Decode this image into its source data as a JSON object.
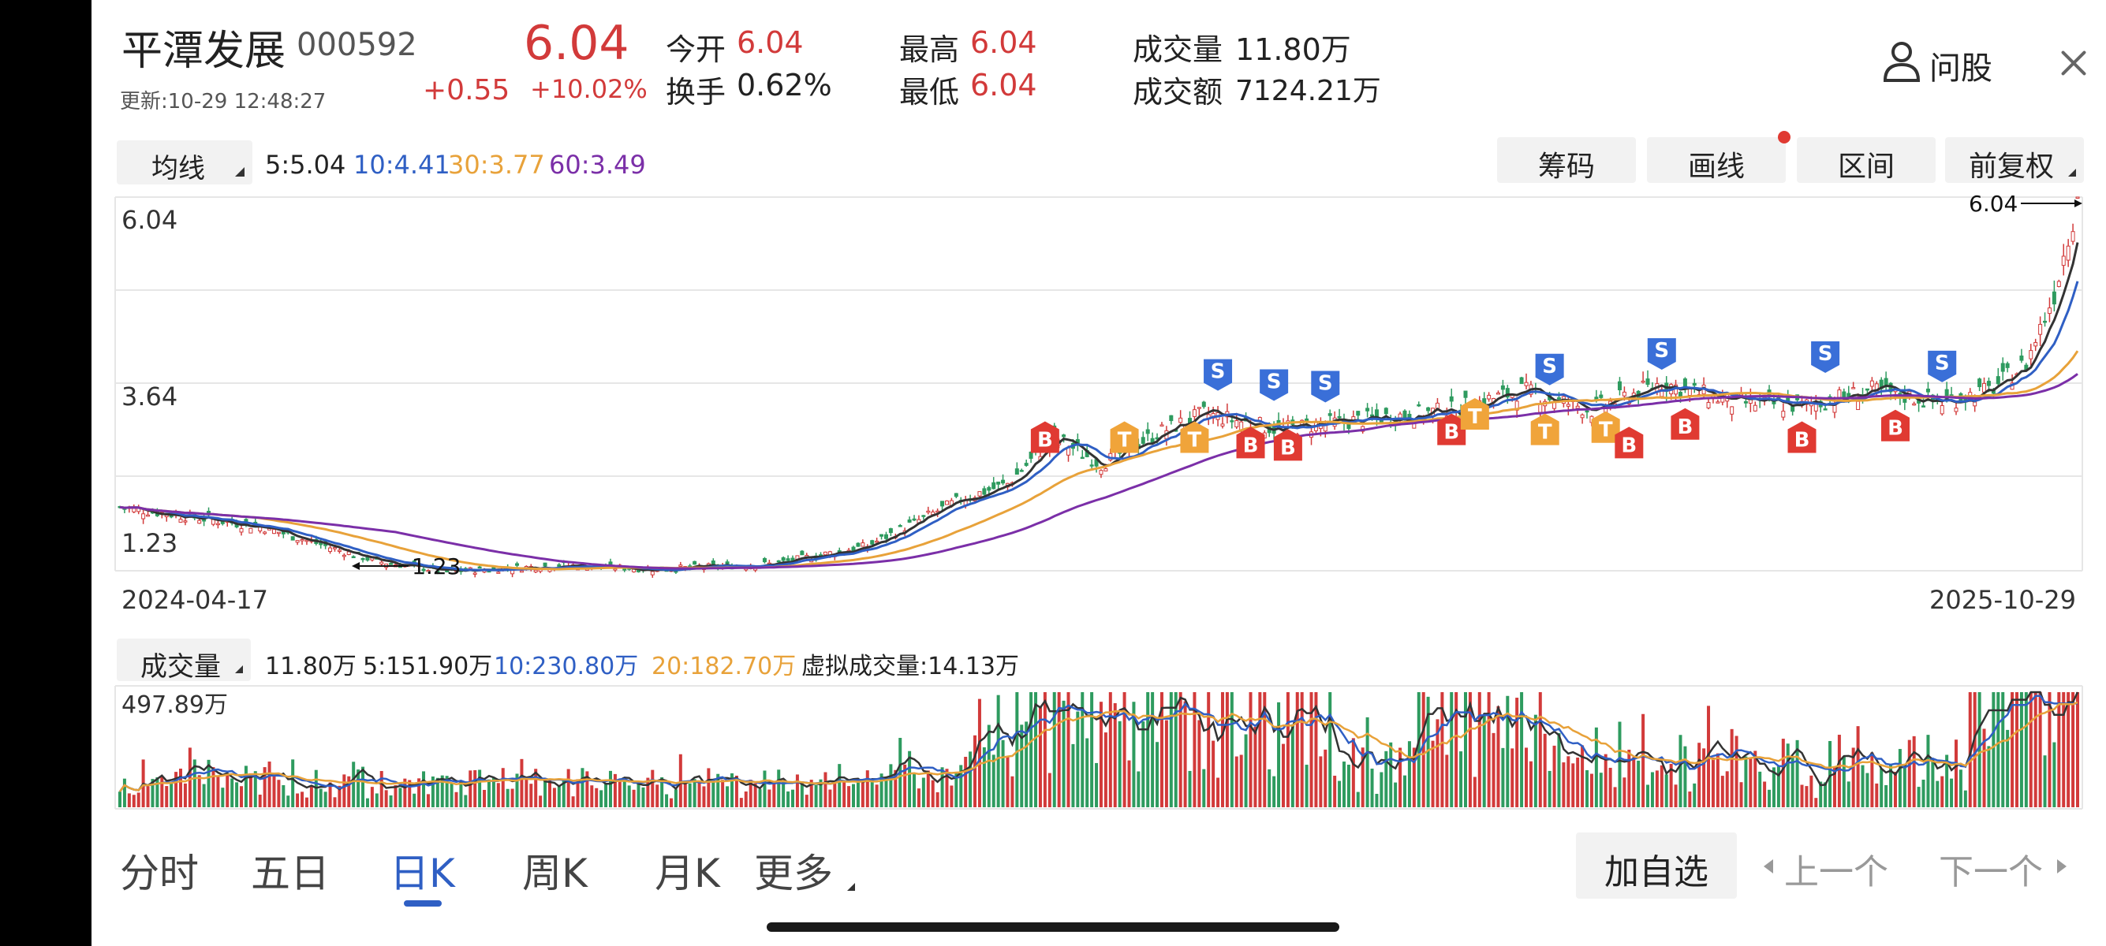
{
  "stock": {
    "name": "平潭发展",
    "code": "000592",
    "update": "更新:10-29 12:48:27",
    "price": "6.04",
    "change": "+0.55",
    "change_pct": "+10.02%"
  },
  "stats": {
    "open_label": "今开",
    "open": "6.04",
    "turnover_label": "换手",
    "turnover": "0.62%",
    "high_label": "最高",
    "high": "6.04",
    "low_label": "最低",
    "low": "6.04",
    "volume_label": "成交量",
    "volume": "11.80万",
    "amount_label": "成交额",
    "amount": "7124.21万"
  },
  "actions": {
    "ask_label": "问股"
  },
  "ma": {
    "selector": "均线",
    "ma5": "5:5.04",
    "ma10": "10:4.41",
    "ma30": "30:3.77",
    "ma60": "60:3.49"
  },
  "tools": {
    "chips": "筹码",
    "draw": "画线",
    "range": "区间",
    "adjust": "前复权"
  },
  "kline": {
    "y_top": "6.04",
    "y_mid": "3.64",
    "y_bottom": "1.23",
    "date_start": "2024-04-17",
    "date_end": "2025-10-29",
    "max_label": "6.04",
    "min_label": "1.23"
  },
  "vol": {
    "selector": "成交量",
    "current": "11.80万",
    "ma5": "5:151.90万",
    "ma10": "10:230.80万",
    "ma20": "20:182.70万",
    "virtual": "虚拟成交量:14.13万",
    "y_max": "497.89万"
  },
  "tabs": {
    "intraday": "分时",
    "five_day": "五日",
    "daily": "日K",
    "weekly": "周K",
    "monthly": "月K",
    "more": "更多"
  },
  "bottom": {
    "add_watch": "加自选",
    "prev": "上一个",
    "next": "下一个"
  },
  "markers": [
    {
      "t": "S",
      "c": "#3a6fd8",
      "d": 235,
      "p": 3.75
    },
    {
      "t": "S",
      "c": "#3a6fd8",
      "d": 247,
      "p": 3.62
    },
    {
      "t": "S",
      "c": "#3a6fd8",
      "d": 258,
      "p": 3.6
    },
    {
      "t": "S",
      "c": "#3a6fd8",
      "d": 306,
      "p": 3.82
    },
    {
      "t": "S",
      "c": "#3a6fd8",
      "d": 330,
      "p": 4.02
    },
    {
      "t": "S",
      "c": "#3a6fd8",
      "d": 365,
      "p": 3.98
    },
    {
      "t": "S",
      "c": "#3a6fd8",
      "d": 390,
      "p": 3.86
    },
    {
      "t": "B",
      "c": "#e03a32",
      "d": 198,
      "p": 2.95
    },
    {
      "t": "T",
      "c": "#f0a43a",
      "d": 215,
      "p": 2.95
    },
    {
      "t": "T",
      "c": "#f0a43a",
      "d": 230,
      "p": 2.95
    },
    {
      "t": "B",
      "c": "#e03a32",
      "d": 242,
      "p": 2.88
    },
    {
      "t": "B",
      "c": "#e03a32",
      "d": 250,
      "p": 2.85
    },
    {
      "t": "B",
      "c": "#e03a32",
      "d": 285,
      "p": 3.05
    },
    {
      "t": "T",
      "c": "#f0a43a",
      "d": 290,
      "p": 3.25
    },
    {
      "t": "T",
      "c": "#f0a43a",
      "d": 305,
      "p": 3.05
    },
    {
      "t": "T",
      "c": "#f0a43a",
      "d": 318,
      "p": 3.08
    },
    {
      "t": "B",
      "c": "#e03a32",
      "d": 323,
      "p": 2.88
    },
    {
      "t": "B",
      "c": "#e03a32",
      "d": 335,
      "p": 3.12
    },
    {
      "t": "B",
      "c": "#e03a32",
      "d": 360,
      "p": 2.95
    },
    {
      "t": "B",
      "c": "#e03a32",
      "d": 380,
      "p": 3.1
    }
  ],
  "colors": {
    "up": "#d23a3a",
    "down": "#2e9b5f",
    "ma5": "#333333",
    "ma10": "#2f5fc4",
    "ma30": "#e8a23a",
    "ma60": "#7b2fa8"
  },
  "icons": {
    "ask": "user-icon",
    "close": "close-icon"
  }
}
